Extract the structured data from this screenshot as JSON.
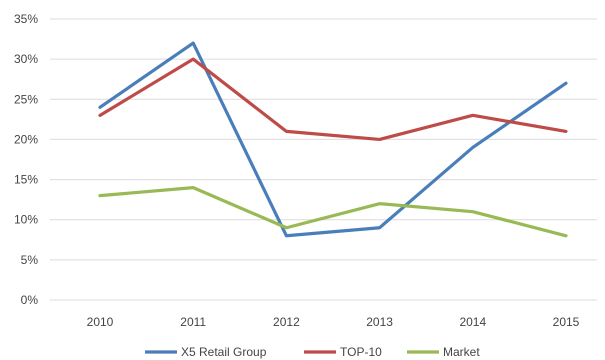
{
  "chart_data": {
    "type": "line",
    "title": "",
    "xlabel": "",
    "ylabel": "",
    "categories": [
      "2010",
      "2011",
      "2012",
      "2013",
      "2014",
      "2015"
    ],
    "y_ticks": [
      0,
      5,
      10,
      15,
      20,
      25,
      30,
      35
    ],
    "y_tick_suffix": "%",
    "ylim": [
      0,
      35
    ],
    "grid": true,
    "legend_position": "bottom",
    "series": [
      {
        "name": "X5 Retail Group",
        "color": "#4a7ebb",
        "values": [
          24,
          32,
          8,
          9,
          19,
          27
        ]
      },
      {
        "name": "TOP-10",
        "color": "#be4b48",
        "values": [
          23,
          30,
          21,
          20,
          23,
          21
        ]
      },
      {
        "name": "Market",
        "color": "#98b954",
        "values": [
          13,
          14,
          9,
          12,
          11,
          8
        ]
      }
    ]
  }
}
